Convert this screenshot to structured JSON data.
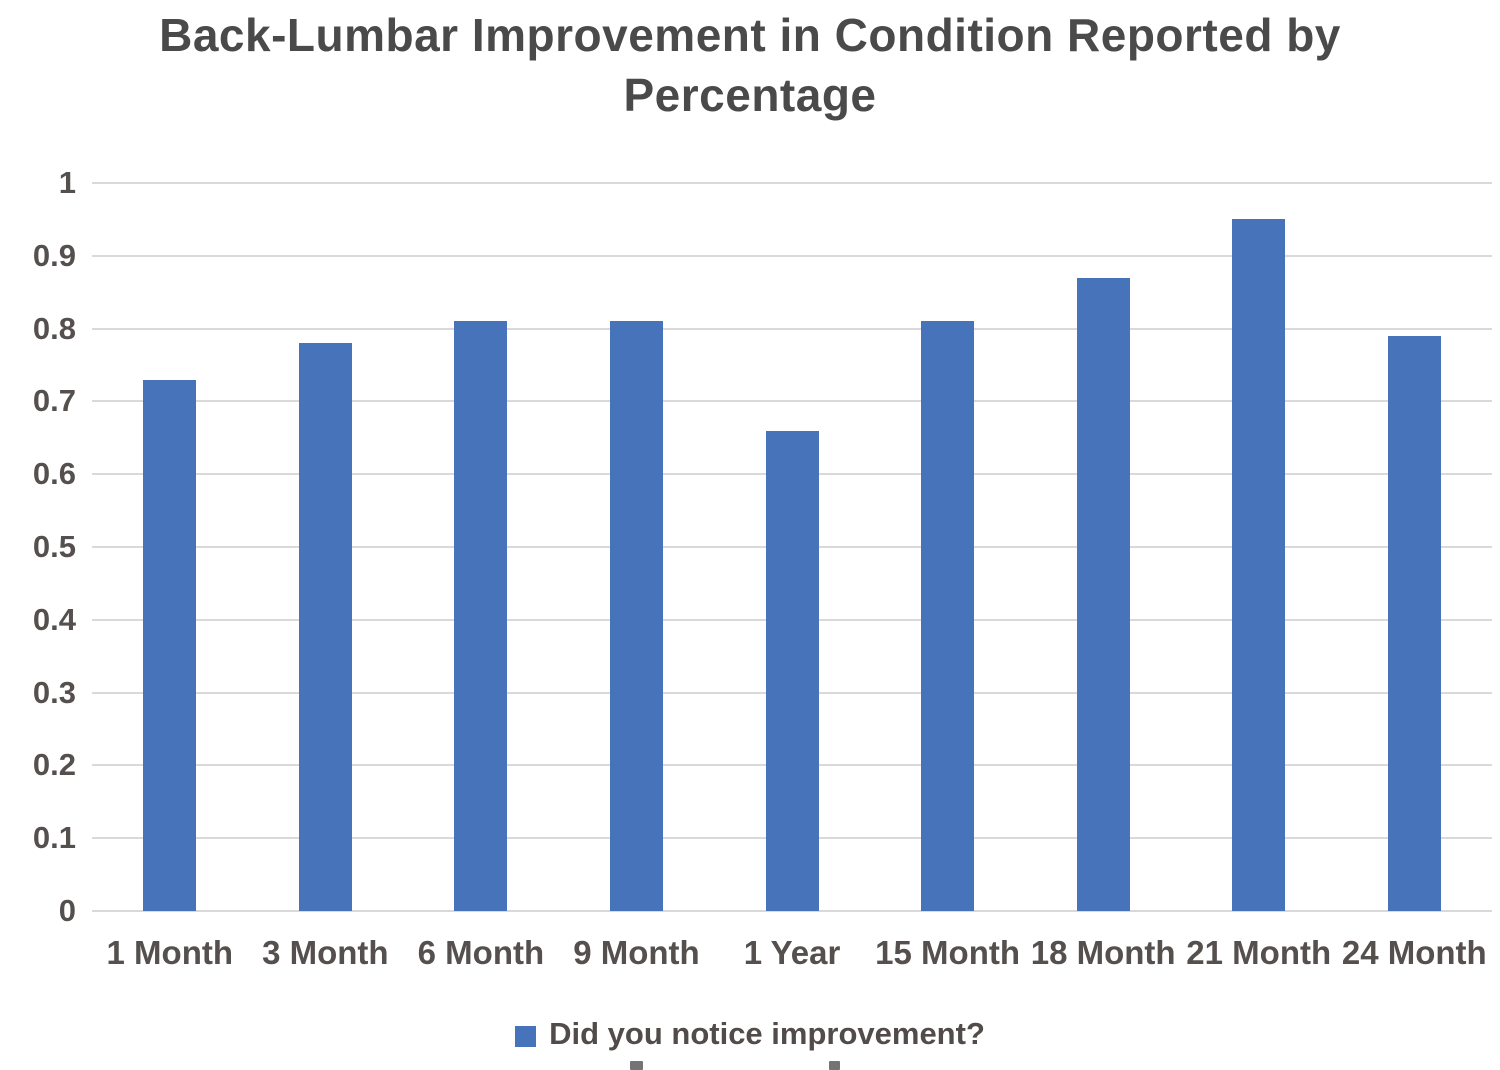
{
  "title": "Back-Lumbar Improvement in Condition Reported by Percentage",
  "legend": {
    "label": "Did you notice improvement?",
    "swatch_color": "#4673b9"
  },
  "colors": {
    "bar": "#4673b9",
    "gridline": "#d9d9d9",
    "axis_text": "#55504e",
    "title_text": "#4a4a4a"
  },
  "chart_data": {
    "type": "bar",
    "title": "Back-Lumbar Improvement in Condition Reported by Percentage",
    "categories": [
      "1 Month",
      "3 Month",
      "6 Month",
      "9 Month",
      "1 Year",
      "15 Month",
      "18 Month",
      "21 Month",
      "24 Month"
    ],
    "series": [
      {
        "name": "Did you notice improvement?",
        "values": [
          0.73,
          0.78,
          0.81,
          0.81,
          0.66,
          0.81,
          0.87,
          0.95,
          0.79
        ]
      }
    ],
    "xlabel": "",
    "ylabel": "",
    "ylim": [
      0,
      1
    ],
    "ytick_step": 0.1,
    "ytick_labels": [
      "1",
      "0.9",
      "0.8",
      "0.7",
      "0.6",
      "0.5",
      "0.4",
      "0.3",
      "0.2",
      "0.1",
      "0"
    ],
    "grid": true,
    "legend_position": "bottom",
    "bar_color": "#4673b9"
  }
}
